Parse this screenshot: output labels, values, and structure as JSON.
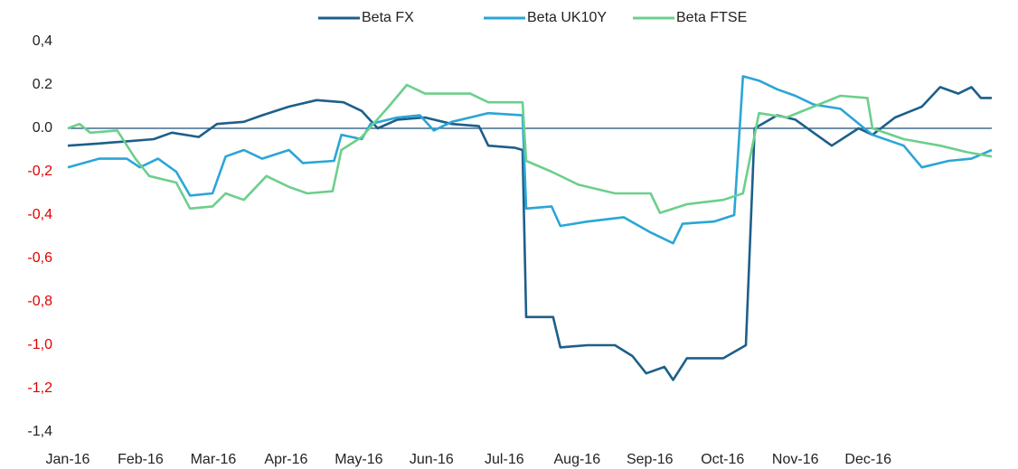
{
  "chart_data": {
    "type": "line",
    "xlim": [
      0,
      12.7
    ],
    "xticks": [
      {
        "value": 0,
        "label": "Jan-16"
      },
      {
        "value": 1,
        "label": "Feb-16"
      },
      {
        "value": 2,
        "label": "Mar-16"
      },
      {
        "value": 3,
        "label": "Apr-16"
      },
      {
        "value": 4,
        "label": "May-16"
      },
      {
        "value": 5,
        "label": "Jun-16"
      },
      {
        "value": 6,
        "label": "Jul-16"
      },
      {
        "value": 7,
        "label": "Aug-16"
      },
      {
        "value": 8,
        "label": "Sep-16"
      },
      {
        "value": 9,
        "label": "Oct-16"
      },
      {
        "value": 10,
        "label": "Nov-16"
      },
      {
        "value": 11,
        "label": "Dec-16"
      }
    ],
    "ylim": [
      -1.4,
      0.4
    ],
    "yticks": [
      {
        "value": 0.4,
        "label": "0,4",
        "color": "#222222"
      },
      {
        "value": 0.2,
        "label": "0.2",
        "color": "#222222"
      },
      {
        "value": 0.0,
        "label": "0.0",
        "color": "#222222"
      },
      {
        "value": -0.2,
        "label": "-0,2",
        "color": "#e00000"
      },
      {
        "value": -0.4,
        "label": "-0,4",
        "color": "#e00000"
      },
      {
        "value": -0.6,
        "label": "-0,6",
        "color": "#e00000"
      },
      {
        "value": -0.8,
        "label": "-0,8",
        "color": "#e00000"
      },
      {
        "value": -1.0,
        "label": "-1,0",
        "color": "#e00000"
      },
      {
        "value": -1.2,
        "label": "-1,2",
        "color": "#e00000"
      },
      {
        "value": -1.4,
        "label": "-1,4",
        "color": "#222222"
      }
    ],
    "grid": false,
    "zero_line": {
      "value": 0,
      "color": "#1b4f7a"
    },
    "legend": "top",
    "series": [
      {
        "name": "Beta FX",
        "color": "#1d5f8a",
        "x": [
          0,
          0.43,
          0.81,
          1.18,
          1.43,
          1.8,
          2.05,
          2.42,
          2.67,
          3.04,
          3.42,
          3.79,
          4.04,
          4.26,
          4.53,
          4.91,
          5.28,
          5.65,
          5.78,
          6.15,
          6.25,
          6.3,
          6.67,
          6.77,
          7.14,
          7.52,
          7.76,
          7.95,
          8.2,
          8.32,
          8.51,
          9.01,
          9.32,
          9.44,
          9.75,
          10,
          10.25,
          10.5,
          10.87,
          11.06,
          11.37,
          11.74,
          11.99,
          12.24,
          12.42,
          12.55,
          12.7
        ],
        "values": [
          -0.08,
          -0.07,
          -0.06,
          -0.05,
          -0.02,
          -0.04,
          0.02,
          0.03,
          0.06,
          0.1,
          0.13,
          0.12,
          0.08,
          0,
          0.04,
          0.05,
          0.02,
          0.01,
          -0.08,
          -0.09,
          -0.1,
          -0.87,
          -0.87,
          -1.01,
          -1,
          -1,
          -1.05,
          -1.13,
          -1.1,
          -1.16,
          -1.06,
          -1.06,
          -1,
          0,
          0.06,
          0.04,
          -0.02,
          -0.08,
          0,
          -0.03,
          0.05,
          0.1,
          0.19,
          0.16,
          0.19,
          0.14,
          0.14
        ]
      },
      {
        "name": "Beta UK10Y",
        "color": "#2aa6d6",
        "x": [
          0,
          0.43,
          0.81,
          0.99,
          1.24,
          1.49,
          1.68,
          1.99,
          2.17,
          2.42,
          2.67,
          3.04,
          3.23,
          3.66,
          3.76,
          4.04,
          4.16,
          4.53,
          4.84,
          5.03,
          5.28,
          5.78,
          6.25,
          6.3,
          6.65,
          6.77,
          7.14,
          7.64,
          8.01,
          8.32,
          8.45,
          8.88,
          9.16,
          9.28,
          9.5,
          9.75,
          10,
          10.25,
          10.62,
          11.06,
          11.49,
          11.74,
          12.11,
          12.42,
          12.7
        ],
        "values": [
          -0.18,
          -0.14,
          -0.14,
          -0.18,
          -0.14,
          -0.2,
          -0.31,
          -0.3,
          -0.13,
          -0.1,
          -0.14,
          -0.1,
          -0.16,
          -0.15,
          -0.03,
          -0.05,
          0.02,
          0.05,
          0.06,
          -0.01,
          0.03,
          0.07,
          0.06,
          -0.37,
          -0.36,
          -0.45,
          -0.43,
          -0.41,
          -0.48,
          -0.53,
          -0.44,
          -0.43,
          -0.4,
          0.24,
          0.22,
          0.18,
          0.15,
          0.11,
          0.09,
          -0.03,
          -0.08,
          -0.18,
          -0.15,
          -0.14,
          -0.1
        ]
      },
      {
        "name": "Beta FTSE",
        "color": "#6ccf8c",
        "x": [
          0,
          0.16,
          0.31,
          0.68,
          0.93,
          1.12,
          1.49,
          1.68,
          1.99,
          2.17,
          2.42,
          2.73,
          3.04,
          3.29,
          3.64,
          3.76,
          4.04,
          4.41,
          4.66,
          4.91,
          5.28,
          5.53,
          5.78,
          6.25,
          6.3,
          6.65,
          7.02,
          7.52,
          8.01,
          8.14,
          8.51,
          9.01,
          9.28,
          9.5,
          9.88,
          10.25,
          10.62,
          10.99,
          11.06,
          11.49,
          11.99,
          12.36,
          12.7
        ],
        "values": [
          0,
          0.02,
          -0.02,
          -0.01,
          -0.14,
          -0.22,
          -0.25,
          -0.37,
          -0.36,
          -0.3,
          -0.33,
          -0.22,
          -0.27,
          -0.3,
          -0.29,
          -0.1,
          -0.04,
          0.1,
          0.2,
          0.16,
          0.16,
          0.16,
          0.12,
          0.12,
          -0.15,
          -0.2,
          -0.26,
          -0.3,
          -0.3,
          -0.39,
          -0.35,
          -0.33,
          -0.3,
          0.07,
          0.05,
          0.1,
          0.15,
          0.14,
          0,
          -0.05,
          -0.08,
          -0.11,
          -0.13
        ]
      }
    ]
  }
}
